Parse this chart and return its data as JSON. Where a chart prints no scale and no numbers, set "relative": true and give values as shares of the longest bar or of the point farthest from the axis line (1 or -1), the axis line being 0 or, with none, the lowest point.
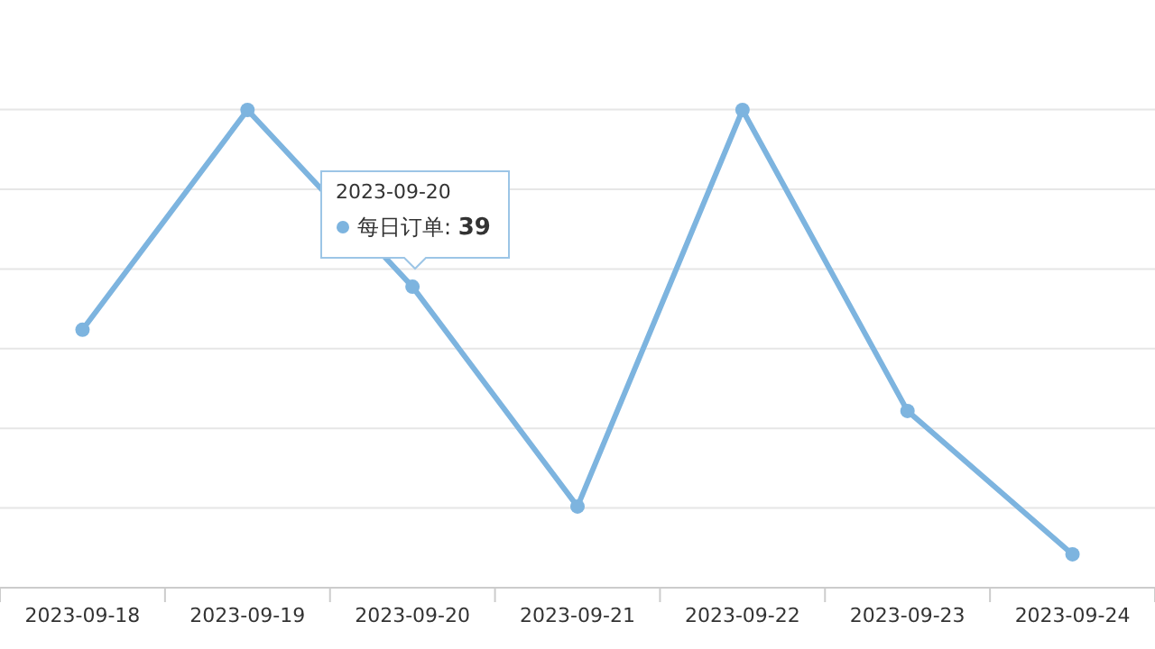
{
  "chart_data": {
    "type": "line",
    "relative": true,
    "categories": [
      "2023-09-18",
      "2023-09-19",
      "2023-09-20",
      "2023-09-21",
      "2023-09-22",
      "2023-09-23",
      "2023-09-24"
    ],
    "series": [
      {
        "name": "每日订单",
        "color": "#7db4df",
        "values": [
          0.54,
          1,
          0.63,
          0.17,
          1,
          0.37,
          0.07
        ]
      }
    ],
    "annotations": [
      "2023-09-20",
      ":",
      "39"
    ],
    "grid": true,
    "marker": "circle",
    "line_style": "solid",
    "legend": "top"
  }
}
